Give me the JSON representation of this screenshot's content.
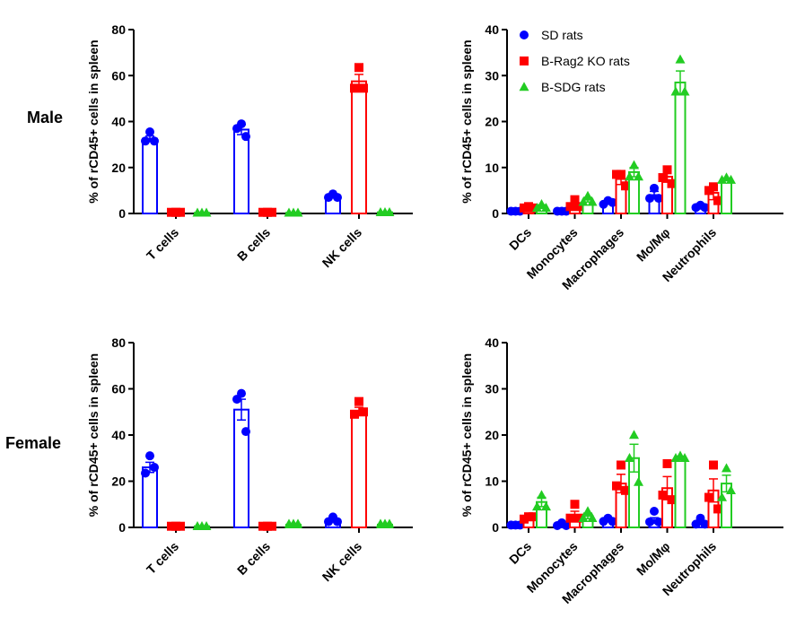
{
  "row_labels": [
    "Male",
    "Female"
  ],
  "legend": {
    "entries": [
      "SD rats",
      "B-Rag2 KO rats",
      "B-SDG rats"
    ]
  },
  "colors": {
    "SD rats": "#0000ff",
    "B-Rag2 KO rats": "#ff0000",
    "B-SDG rats": "#22cc22"
  },
  "chart_data": [
    {
      "id": "male-lymphocytes",
      "type": "bar",
      "ylabel": "% of rCD45+ cells in spleen",
      "ylim": [
        0,
        80
      ],
      "yticks": [
        0,
        20,
        40,
        60,
        80
      ],
      "categories": [
        "T cells",
        "B cells",
        "NK cells"
      ],
      "legend": "none",
      "series": [
        {
          "name": "SD rats",
          "values": [
            32.5,
            36.5,
            7.5
          ],
          "errors": [
            1.2,
            2.2,
            0.7
          ],
          "points": [
            [
              35.5,
              31.5,
              31.5
            ],
            [
              39,
              37,
              33.5
            ],
            [
              8.5,
              7,
              7
            ]
          ]
        },
        {
          "name": "B-Rag2 KO rats",
          "values": [
            0.5,
            0.5,
            57.5
          ],
          "errors": [
            0.2,
            0.2,
            3
          ],
          "points": [
            [
              0.5,
              0.5,
              0.5
            ],
            [
              0.5,
              0.5,
              0.5
            ],
            [
              63.5,
              54.5,
              54.5
            ]
          ]
        },
        {
          "name": "B-SDG rats",
          "values": [
            0.3,
            0.3,
            0.5
          ],
          "errors": [
            0.1,
            0.1,
            0.1
          ],
          "points": [
            [
              0.3,
              0.3,
              0.3
            ],
            [
              0.3,
              0.3,
              0.3
            ],
            [
              0.5,
              0.5,
              0.5
            ]
          ]
        }
      ]
    },
    {
      "id": "male-myeloid",
      "type": "bar",
      "ylabel": "% of rCD45+ cells in spleen",
      "ylim": [
        0,
        40
      ],
      "yticks": [
        0,
        10,
        20,
        30,
        40
      ],
      "categories": [
        "DCs",
        "Monocytes",
        "Macrophages",
        "Mo/Mφ",
        "Neutrophils"
      ],
      "legend": "top-left",
      "series": [
        {
          "name": "SD rats",
          "values": [
            0.5,
            0.5,
            2.4,
            4,
            1.5
          ],
          "errors": [
            0.1,
            0.1,
            0.3,
            0.8,
            0.3
          ],
          "points": [
            [
              0.5,
              0.5,
              0.5
            ],
            [
              0.5,
              0.5,
              0.5
            ],
            [
              2.8,
              2,
              2.4
            ],
            [
              5.5,
              3.3,
              3.3
            ],
            [
              1.8,
              1.3,
              1.3
            ]
          ]
        },
        {
          "name": "B-Rag2 KO rats",
          "values": [
            1.3,
            2,
            7.5,
            8,
            4.5
          ],
          "errors": [
            0.2,
            0.6,
            1.2,
            1.2,
            1.5
          ],
          "points": [
            [
              1.5,
              1.2,
              1.2
            ],
            [
              3,
              1.5,
              1.5
            ],
            [
              8.5,
              8.5,
              6
            ],
            [
              9.5,
              7.8,
              6.5
            ],
            [
              5.8,
              5,
              2.8
            ]
          ]
        },
        {
          "name": "B-SDG rats",
          "values": [
            1.5,
            3,
            9,
            28.5,
            7.5
          ],
          "errors": [
            0.4,
            0.5,
            1,
            2.5,
            0.2
          ],
          "points": [
            [
              2,
              1.2,
              1.2
            ],
            [
              3.8,
              2.5,
              2.5
            ],
            [
              10.5,
              8,
              8
            ],
            [
              33.5,
              26.5,
              26.5
            ],
            [
              7.8,
              7.3,
              7.3
            ]
          ]
        }
      ]
    },
    {
      "id": "female-lymphocytes",
      "type": "bar",
      "ylabel": "% of rCD45+ cells in spleen",
      "ylim": [
        0,
        80
      ],
      "yticks": [
        0,
        20,
        40,
        60,
        80
      ],
      "categories": [
        "T cells",
        "B cells",
        "NK cells"
      ],
      "legend": "none",
      "series": [
        {
          "name": "SD rats",
          "values": [
            26,
            51,
            3
          ],
          "errors": [
            2.2,
            4.5,
            0.7
          ],
          "points": [
            [
              31,
              23.5,
              26
            ],
            [
              58,
              55.5,
              41.5
            ],
            [
              4.5,
              2.5,
              2.5
            ]
          ]
        },
        {
          "name": "B-Rag2 KO rats",
          "values": [
            0.5,
            0.5,
            50.5
          ],
          "errors": [
            0.2,
            0.2,
            1.5
          ],
          "points": [
            [
              0.5,
              0.5,
              0.5
            ],
            [
              0.5,
              0.5,
              0.5
            ],
            [
              54.5,
              49,
              50
            ]
          ]
        },
        {
          "name": "B-SDG rats",
          "values": [
            0.5,
            1.2,
            1.2
          ],
          "errors": [
            0.1,
            0.2,
            0.2
          ],
          "points": [
            [
              0.5,
              0.5,
              0.5
            ],
            [
              1.5,
              1.5,
              1.5
            ],
            [
              1.5,
              1.5,
              1.5
            ]
          ]
        }
      ]
    },
    {
      "id": "female-myeloid",
      "type": "bar",
      "ylabel": "% of rCD45+ cells in spleen",
      "ylim": [
        0,
        40
      ],
      "yticks": [
        0,
        10,
        20,
        30,
        40
      ],
      "categories": [
        "DCs",
        "Monocytes",
        "Macrophages",
        "Mo/Mφ",
        "Neutrophils"
      ],
      "legend": "none",
      "series": [
        {
          "name": "SD rats",
          "values": [
            0.5,
            0.5,
            1.5,
            1.5,
            1
          ],
          "errors": [
            0.1,
            0.1,
            0.2,
            0.6,
            0.4
          ],
          "points": [
            [
              0.5,
              0.5,
              0.5
            ],
            [
              1,
              0.4,
              0.4
            ],
            [
              2,
              1.3,
              1.3
            ],
            [
              3.5,
              1.2,
              1.2
            ],
            [
              2,
              0.7,
              0.7
            ]
          ]
        },
        {
          "name": "B-Rag2 KO rats",
          "values": [
            2,
            2.5,
            9.5,
            8.5,
            8
          ],
          "errors": [
            0.3,
            1,
            2,
            2.5,
            2.5
          ],
          "points": [
            [
              2.3,
              1.8,
              2.3
            ],
            [
              5,
              2,
              2
            ],
            [
              13.5,
              9,
              8
            ],
            [
              13.8,
              7,
              6
            ],
            [
              13.5,
              6.5,
              4
            ]
          ]
        },
        {
          "name": "B-SDG rats",
          "values": [
            5.5,
            2.5,
            15,
            15,
            9.5
          ],
          "errors": [
            1,
            0.6,
            3,
            0.4,
            1.8
          ],
          "points": [
            [
              7,
              4.5,
              4.5
            ],
            [
              3.5,
              2,
              2
            ],
            [
              20,
              15,
              9.8
            ],
            [
              15.5,
              15,
              15
            ],
            [
              12.8,
              6.5,
              8
            ]
          ]
        }
      ]
    }
  ]
}
